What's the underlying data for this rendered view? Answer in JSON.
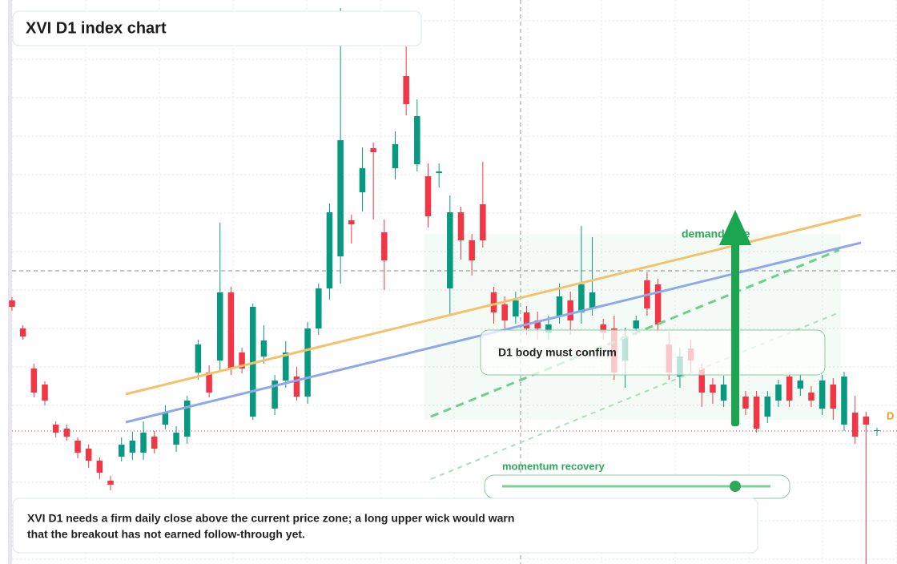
{
  "chart_data": {
    "type": "candlestick",
    "title": "XVI D1 index chart",
    "ylim": [
      0,
      704
    ],
    "up_color": "#089981",
    "down_color": "#f23645",
    "open": [
      329,
      294,
      244,
      224,
      174,
      169,
      154,
      144,
      129,
      104,
      134,
      139,
      139,
      159,
      174,
      149,
      159,
      239,
      239,
      254,
      339,
      264,
      184,
      259,
      194,
      229,
      234,
      209,
      294,
      344,
      384,
      429,
      464,
      519,
      414,
      494,
      609,
      499,
      484,
      488,
      344,
      439,
      404,
      449,
      339,
      324,
      309,
      314,
      304,
      289,
      309,
      329,
      314,
      319,
      299,
      294,
      254,
      294,
      354,
      349,
      274,
      234,
      269,
      244,
      224,
      204,
      214,
      209,
      209,
      184,
      204,
      234,
      219,
      214,
      194,
      224,
      174,
      189,
      184,
      167
    ],
    "high": [
      333,
      298,
      250,
      228,
      178,
      174,
      158,
      149,
      133,
      110,
      158,
      165,
      178,
      166,
      198,
      172,
      210,
      280,
      248,
      426,
      346,
      270,
      325,
      298,
      236,
      278,
      246,
      302,
      350,
      450,
      694,
      436,
      520,
      526,
      430,
      540,
      646,
      580,
      500,
      500,
      460,
      446,
      412,
      502,
      346,
      334,
      340,
      322,
      315,
      310,
      350,
      340,
      422,
      408,
      306,
      310,
      295,
      310,
      364,
      356,
      290,
      270,
      280,
      250,
      232,
      235,
      222,
      216,
      216,
      216,
      230,
      240,
      236,
      222,
      236,
      232,
      240,
      210,
      190,
      170
    ],
    "low": [
      316,
      280,
      208,
      198,
      158,
      154,
      132,
      120,
      106,
      92,
      128,
      130,
      130,
      138,
      168,
      140,
      150,
      230,
      208,
      240,
      236,
      238,
      180,
      250,
      186,
      220,
      204,
      200,
      286,
      330,
      350,
      400,
      440,
      430,
      342,
      480,
      560,
      490,
      420,
      470,
      310,
      380,
      360,
      395,
      300,
      290,
      300,
      286,
      280,
      280,
      300,
      286,
      300,
      310,
      280,
      230,
      220,
      286,
      310,
      290,
      230,
      220,
      240,
      196,
      200,
      196,
      196,
      186,
      164,
      176,
      196,
      196,
      210,
      196,
      186,
      180,
      166,
      150,
      0,
      160
    ],
    "close": [
      321,
      284,
      214,
      204,
      164,
      159,
      139,
      129,
      114,
      99,
      149,
      154,
      164,
      144,
      189,
      164,
      204,
      274,
      214,
      339,
      244,
      244,
      321,
      279,
      229,
      264,
      209,
      294,
      344,
      439,
      529,
      424,
      494,
      514,
      379,
      524,
      574,
      559,
      434,
      490,
      439,
      404,
      379,
      404,
      314,
      304,
      329,
      294,
      294,
      299,
      334,
      304,
      349,
      339,
      289,
      239,
      284,
      304,
      319,
      299,
      239,
      259,
      254,
      214,
      214,
      224,
      204,
      194,
      169,
      209,
      224,
      204,
      229,
      204,
      229,
      194,
      234,
      159,
      174,
      167
    ]
  },
  "annotations": {
    "zone": "demand side",
    "box": "D1 body must confirm",
    "slider": "momentum recovery",
    "price_label": "D"
  },
  "caption": [
    "XVI D1 needs a firm daily close above the current price zone; a long upper wick would warn",
    "that the breakout has not earned follow-through yet."
  ]
}
